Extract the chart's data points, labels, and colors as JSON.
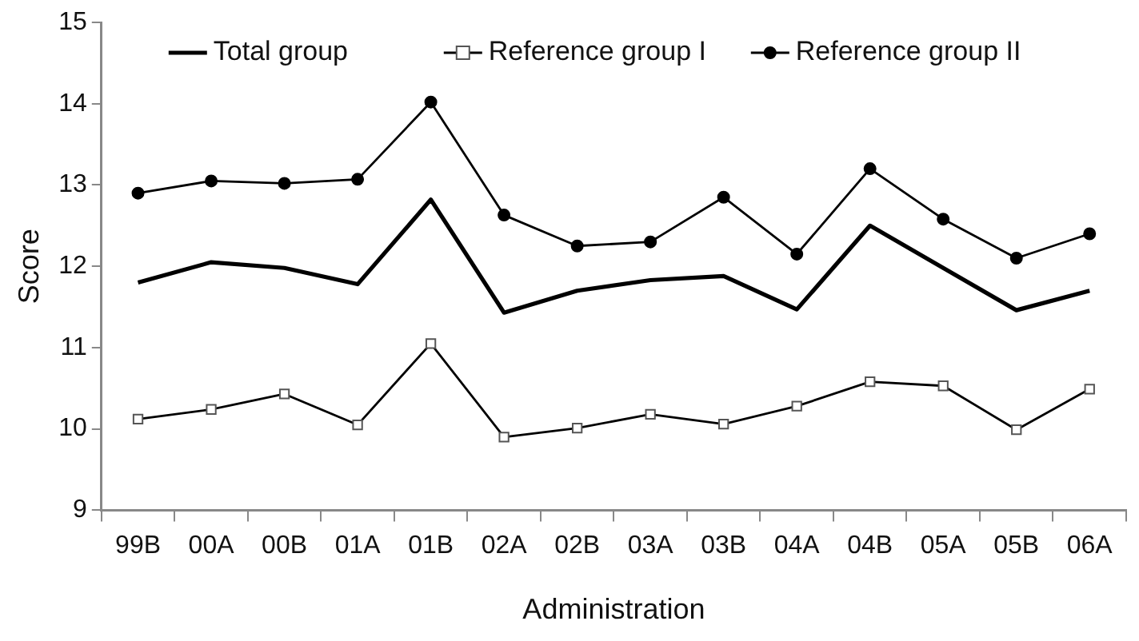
{
  "chart_data": {
    "type": "line",
    "xlabel": "Administration",
    "ylabel": "Score",
    "categories": [
      "99B",
      "00A",
      "00B",
      "01A",
      "01B",
      "02A",
      "02B",
      "03A",
      "03B",
      "04A",
      "04B",
      "05A",
      "05B",
      "06A"
    ],
    "series": [
      {
        "name": "Total group",
        "color": "#000000",
        "marker": "none",
        "values": [
          11.8,
          12.05,
          11.98,
          11.78,
          12.82,
          11.43,
          11.7,
          11.83,
          11.88,
          11.47,
          12.5,
          11.98,
          11.46,
          11.7
        ]
      },
      {
        "name": "Reference group I",
        "color": "#000000",
        "marker": "square",
        "values": [
          10.12,
          10.24,
          10.43,
          10.05,
          11.05,
          9.9,
          10.01,
          10.18,
          10.06,
          10.28,
          10.58,
          10.53,
          9.99,
          10.49
        ]
      },
      {
        "name": "Reference group II",
        "color": "#000000",
        "marker": "circle",
        "values": [
          12.9,
          13.05,
          13.02,
          13.07,
          14.02,
          12.63,
          12.25,
          12.3,
          12.85,
          12.15,
          13.2,
          12.58,
          12.1,
          12.4
        ]
      }
    ],
    "ylim": [
      9,
      15
    ],
    "yticks": [
      9,
      10,
      11,
      12,
      13,
      14,
      15
    ],
    "grid": false,
    "legend": "top"
  }
}
